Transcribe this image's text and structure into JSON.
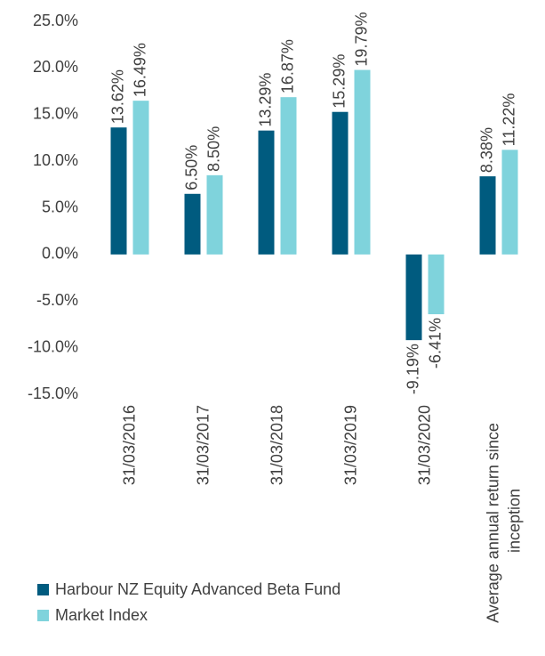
{
  "chart_data": {
    "type": "bar",
    "categories": [
      "31/03/2016",
      "31/03/2017",
      "31/03/2018",
      "31/03/2019",
      "31/03/2020",
      "Average annual return since inception"
    ],
    "series": [
      {
        "name": "Harbour NZ Equity Advanced Beta Fund",
        "color": "#005b7f",
        "values": [
          13.62,
          6.5,
          13.29,
          15.29,
          -9.19,
          8.38
        ],
        "value_labels": [
          "13.62%",
          "6.50%",
          "13.29%",
          "15.29%",
          "-9.19%",
          "8.38%"
        ]
      },
      {
        "name": "Market Index",
        "color": "#7fd3dc",
        "values": [
          16.49,
          8.5,
          16.87,
          19.79,
          -6.41,
          11.22
        ],
        "value_labels": [
          "16.49%",
          "8.50%",
          "16.87%",
          "19.79%",
          "-6.41%",
          "11.22%"
        ]
      }
    ],
    "ylim": [
      -15,
      25
    ],
    "yticks": [
      {
        "value": -15,
        "label": "-15.0%"
      },
      {
        "value": -10,
        "label": "-10.0%"
      },
      {
        "value": -5,
        "label": "-5.0%"
      },
      {
        "value": 0,
        "label": "0.0%"
      },
      {
        "value": 5,
        "label": "5.0%"
      },
      {
        "value": 10,
        "label": "10.0%"
      },
      {
        "value": 15,
        "label": "15.0%"
      },
      {
        "value": 20,
        "label": "20.0%"
      },
      {
        "value": 25,
        "label": "25.0%"
      }
    ],
    "grid": false,
    "legend": "bottom-left"
  }
}
